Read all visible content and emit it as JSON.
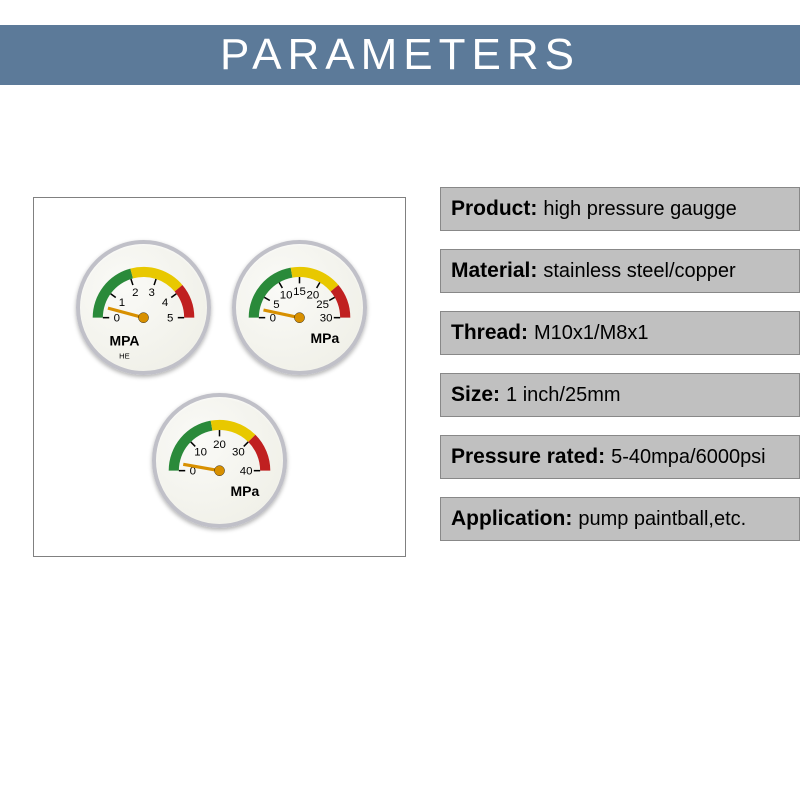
{
  "header": {
    "title": "PARAMETERS",
    "background_color": "#5c7a99",
    "text_color": "#ffffff",
    "fontsize": 44,
    "letter_spacing": 6
  },
  "image_box": {
    "border_color": "#808080",
    "gauges": [
      {
        "position": "top-left",
        "unit_label": "MPA",
        "sublabel": "HE",
        "scale_labels": [
          "0",
          "1",
          "2",
          "3",
          "4",
          "5"
        ],
        "start_angle": -180,
        "end_angle": 0,
        "color_zones": [
          {
            "from": -180,
            "to": -105,
            "color": "#2a8a3a"
          },
          {
            "from": -105,
            "to": -40,
            "color": "#e8c800"
          },
          {
            "from": -40,
            "to": 0,
            "color": "#c02020"
          }
        ],
        "needle_angle": -165,
        "needle_color": "#d89000",
        "face_color": "#f5f5ec",
        "bezel_color": "#c0c0c8"
      },
      {
        "position": "top-right",
        "unit_label": "MPa",
        "scale_labels": [
          "0",
          "5",
          "10",
          "15",
          "20",
          "25",
          "30"
        ],
        "start_angle": -180,
        "end_angle": 0,
        "color_zones": [
          {
            "from": -180,
            "to": -100,
            "color": "#2a8a3a"
          },
          {
            "from": -100,
            "to": -40,
            "color": "#e8c800"
          },
          {
            "from": -40,
            "to": 0,
            "color": "#c02020"
          }
        ],
        "needle_angle": -168,
        "needle_color": "#d89000",
        "face_color": "#f5f5ec",
        "bezel_color": "#c0c0c8"
      },
      {
        "position": "bottom-center",
        "unit_label": "MPa",
        "scale_labels": [
          "0",
          "10",
          "20",
          "30",
          "40"
        ],
        "start_angle": -180,
        "end_angle": 0,
        "color_zones": [
          {
            "from": -180,
            "to": -100,
            "color": "#2a8a3a"
          },
          {
            "from": -100,
            "to": -45,
            "color": "#e8c800"
          },
          {
            "from": -45,
            "to": 0,
            "color": "#c02020"
          }
        ],
        "needle_angle": -170,
        "needle_color": "#d89000",
        "face_color": "#f5f5ec",
        "bezel_color": "#c0c0c8"
      }
    ]
  },
  "specs": {
    "row_background": "#c0c0c0",
    "row_border": "#888888",
    "label_fontsize": 21,
    "value_fontsize": 20,
    "rows": [
      {
        "label": "Product:",
        "value": "high pressure gaugge"
      },
      {
        "label": "Material:",
        "value": "stainless steel/copper"
      },
      {
        "label": "Thread:",
        "value": "M10x1/M8x1"
      },
      {
        "label": "Size:",
        "value": "1 inch/25mm"
      },
      {
        "label": "Pressure rated:",
        "value": "5-40mpa/6000psi"
      },
      {
        "label": "Application:",
        "value": "pump paintball,etc."
      }
    ]
  }
}
